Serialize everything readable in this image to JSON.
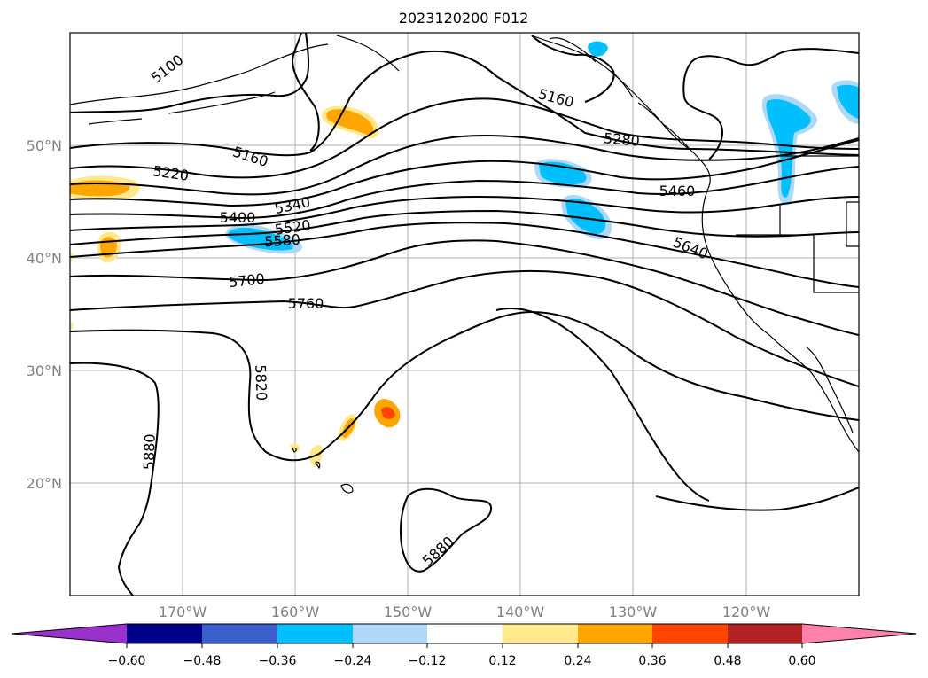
{
  "title": "2023120200 F012",
  "lat_labels": [
    "50°N",
    "40°N",
    "30°N",
    "20°N"
  ],
  "lon_labels": [
    "170°W",
    "160°W",
    "150°W",
    "140°W",
    "130°W",
    "120°W"
  ],
  "contour_labels": [
    "5100",
    "5160",
    "5160",
    "5220",
    "5280",
    "5340",
    "5400",
    "5460",
    "5520",
    "5580",
    "5640",
    "5700",
    "5760",
    "5820",
    "5880",
    "5880"
  ],
  "colorbar": {
    "ticks": [
      "−0.60",
      "−0.48",
      "−0.36",
      "−0.24",
      "−0.12",
      "0.12",
      "0.24",
      "0.36",
      "0.48",
      "0.60"
    ],
    "colors": [
      "#9932CC",
      "#00008B",
      "#3A5FCD",
      "#00BFFF",
      "#ADD8F6",
      "#FFFFFF",
      "#FFE98C",
      "#FFA500",
      "#FF4500",
      "#B22222",
      "#FF82AB"
    ]
  }
}
